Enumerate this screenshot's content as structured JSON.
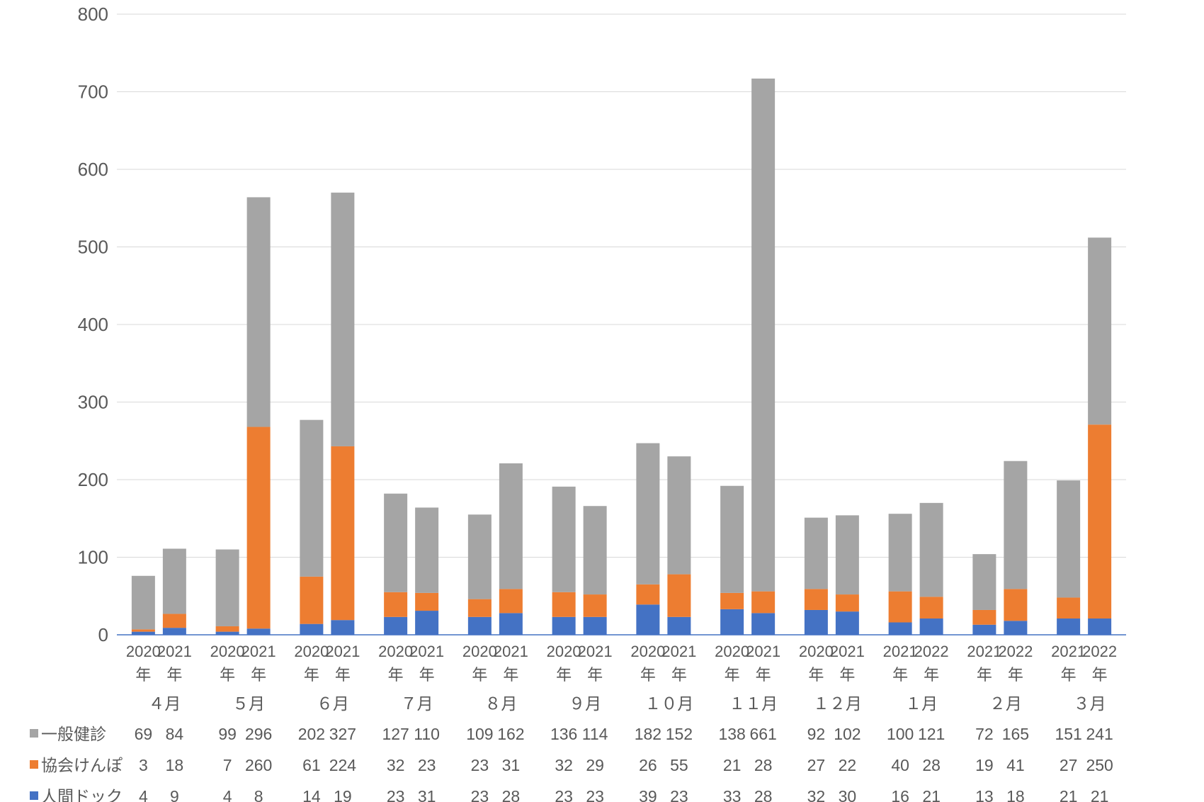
{
  "chart_data": {
    "type": "bar",
    "stacked": true,
    "ylim": [
      0,
      800
    ],
    "yticks": [
      0,
      100,
      200,
      300,
      400,
      500,
      600,
      700,
      800
    ],
    "grid": true,
    "legend_placement": "data-table-left",
    "year_char": "年",
    "groups": [
      {
        "month": "４月",
        "years": [
          "2020",
          "2021"
        ]
      },
      {
        "month": "５月",
        "years": [
          "2020",
          "2021"
        ]
      },
      {
        "month": "６月",
        "years": [
          "2020",
          "2021"
        ]
      },
      {
        "month": "７月",
        "years": [
          "2020",
          "2021"
        ]
      },
      {
        "month": "８月",
        "years": [
          "2020",
          "2021"
        ]
      },
      {
        "month": "９月",
        "years": [
          "2020",
          "2021"
        ]
      },
      {
        "month": "１０月",
        "years": [
          "2020",
          "2021"
        ]
      },
      {
        "month": "１１月",
        "years": [
          "2020",
          "2021"
        ]
      },
      {
        "month": "１２月",
        "years": [
          "2020",
          "2021"
        ]
      },
      {
        "month": "１月",
        "years": [
          "2021",
          "2022"
        ]
      },
      {
        "month": "２月",
        "years": [
          "2021",
          "2022"
        ]
      },
      {
        "month": "３月",
        "years": [
          "2021",
          "2022"
        ]
      }
    ],
    "series": [
      {
        "name": "人間ドック",
        "color": "#4472C4",
        "values": [
          4,
          9,
          4,
          8,
          14,
          19,
          23,
          31,
          23,
          28,
          23,
          23,
          39,
          23,
          33,
          28,
          32,
          30,
          16,
          21,
          13,
          18,
          21,
          21
        ]
      },
      {
        "name": "協会けんぽ",
        "color": "#ED7D31",
        "values": [
          3,
          18,
          7,
          260,
          61,
          224,
          32,
          23,
          23,
          31,
          32,
          29,
          26,
          55,
          21,
          28,
          27,
          22,
          40,
          28,
          19,
          41,
          27,
          250
        ]
      },
      {
        "name": "一般健診",
        "color": "#A5A5A5",
        "values": [
          69,
          84,
          99,
          296,
          202,
          327,
          127,
          110,
          109,
          162,
          136,
          114,
          182,
          152,
          138,
          661,
          92,
          102,
          100,
          121,
          72,
          165,
          151,
          241
        ]
      }
    ],
    "table_row_order": [
      "一般健診",
      "協会けんぽ",
      "人間ドック"
    ]
  }
}
